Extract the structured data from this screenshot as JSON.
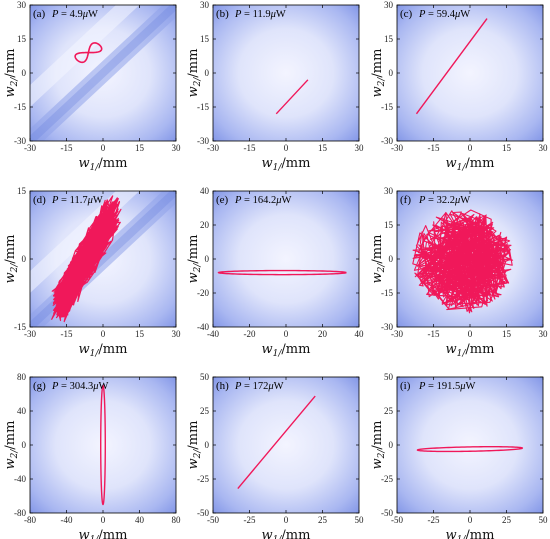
{
  "chart_data": [
    {
      "type": "line",
      "label": "(a)",
      "power": "P = 4.9μW",
      "xlabel": "w_t1/mm",
      "ylabel": "w_t2/mm",
      "xlim": [
        -30,
        30
      ],
      "ylim": [
        -30,
        30
      ],
      "xticks": [
        -30,
        -15,
        0,
        15,
        30
      ],
      "yticks": [
        -30,
        -15,
        0,
        15,
        30
      ],
      "trajectory": "figure-eight",
      "center": [
        -6,
        9
      ],
      "extent": [
        12,
        10
      ],
      "background": "diagonal-band",
      "line_color": "#f0185a"
    },
    {
      "type": "line",
      "label": "(b)",
      "power": "P = 11.9μW",
      "xlabel": "w_t1/mm",
      "ylabel": "w_t2/mm",
      "xlim": [
        -30,
        30
      ],
      "ylim": [
        -30,
        30
      ],
      "xticks": [
        -30,
        -15,
        0,
        15,
        30
      ],
      "yticks": [
        -30,
        -15,
        0,
        15,
        30
      ],
      "trajectory": "line-segment",
      "points": [
        [
          -4,
          -18
        ],
        [
          9,
          -3
        ]
      ],
      "background": "radial",
      "line_color": "#f0185a"
    },
    {
      "type": "line",
      "label": "(c)",
      "power": "P = 59.4μW",
      "xlabel": "w_t1/mm",
      "ylabel": "w_t2/mm",
      "xlim": [
        -30,
        30
      ],
      "ylim": [
        -30,
        30
      ],
      "xticks": [
        -30,
        -15,
        0,
        15,
        30
      ],
      "yticks": [
        -30,
        -15,
        0,
        15,
        30
      ],
      "trajectory": "line-segment",
      "points": [
        [
          -22,
          -18
        ],
        [
          7,
          24
        ]
      ],
      "background": "radial",
      "line_color": "#f0185a"
    },
    {
      "type": "line",
      "label": "(d)",
      "power": "P = 11.7μW",
      "xlabel": "w_t1/mm",
      "ylabel": "w_t2/mm",
      "xlim": [
        -30,
        30
      ],
      "ylim": [
        -15,
        15
      ],
      "xticks": [
        -30,
        -15,
        0,
        15,
        30
      ],
      "yticks": [
        -15,
        0,
        15
      ],
      "trajectory": "chaotic",
      "center": [
        -7,
        0
      ],
      "extent": [
        12,
        13
      ],
      "background": "diagonal-band",
      "line_color": "#f0185a"
    },
    {
      "type": "line",
      "label": "(e)",
      "power": "P = 164.2μW",
      "xlabel": "w_t1/mm",
      "ylabel": "w_t2/mm",
      "xlim": [
        -40,
        40
      ],
      "ylim": [
        -40,
        40
      ],
      "xticks": [
        -40,
        -20,
        0,
        20,
        40
      ],
      "yticks": [
        -40,
        -20,
        0,
        20,
        40
      ],
      "trajectory": "ellipse",
      "center": [
        -2,
        -8
      ],
      "extent": [
        35,
        1.2
      ],
      "tilt": 0,
      "background": "radial",
      "line_color": "#f0185a"
    },
    {
      "type": "line",
      "label": "(f)",
      "power": "P = 32.2μW",
      "xlabel": "w_t1/mm",
      "ylabel": "w_t2/mm",
      "xlim": [
        -30,
        30
      ],
      "ylim": [
        -30,
        30
      ],
      "xticks": [
        -30,
        -15,
        0,
        15,
        30
      ],
      "yticks": [
        -30,
        -15,
        0,
        15,
        30
      ],
      "trajectory": "chaotic",
      "center": [
        -3,
        -1
      ],
      "extent": [
        21,
        23
      ],
      "background": "radial",
      "line_color": "#f0185a"
    },
    {
      "type": "line",
      "label": "(g)",
      "power": "P = 304.3μW",
      "xlabel": "w_t1/mm",
      "ylabel": "w_t2/mm",
      "xlim": [
        -80,
        80
      ],
      "ylim": [
        -80,
        80
      ],
      "xticks": [
        -80,
        -40,
        0,
        40,
        80
      ],
      "yticks": [
        -80,
        -40,
        0,
        40,
        80
      ],
      "trajectory": "ellipse",
      "center": [
        0,
        0
      ],
      "extent": [
        2.5,
        70
      ],
      "tilt": 0,
      "background": "radial",
      "line_color": "#f0185a"
    },
    {
      "type": "line",
      "label": "(h)",
      "power": "P = 172μW",
      "xlabel": "w_t1/mm",
      "ylabel": "w_t2/mm",
      "xlim": [
        -50,
        50
      ],
      "ylim": [
        -50,
        50
      ],
      "xticks": [
        -50,
        -25,
        0,
        25,
        50
      ],
      "yticks": [
        -50,
        -25,
        0,
        25,
        50
      ],
      "trajectory": "line-segment",
      "points": [
        [
          -33,
          -32
        ],
        [
          20,
          36
        ]
      ],
      "background": "radial",
      "line_color": "#f0185a"
    },
    {
      "type": "line",
      "label": "(i)",
      "power": "P = 191.5μW",
      "xlabel": "w_t1/mm",
      "ylabel": "w_t2/mm",
      "xlim": [
        -50,
        50
      ],
      "ylim": [
        -50,
        50
      ],
      "xticks": [
        -50,
        -25,
        0,
        25,
        50
      ],
      "yticks": [
        -50,
        -25,
        0,
        25,
        50
      ],
      "trajectory": "ellipse",
      "center": [
        0,
        -3
      ],
      "extent": [
        36,
        1.6
      ],
      "tilt": 0.4,
      "background": "radial",
      "line_color": "#f0185a"
    }
  ]
}
